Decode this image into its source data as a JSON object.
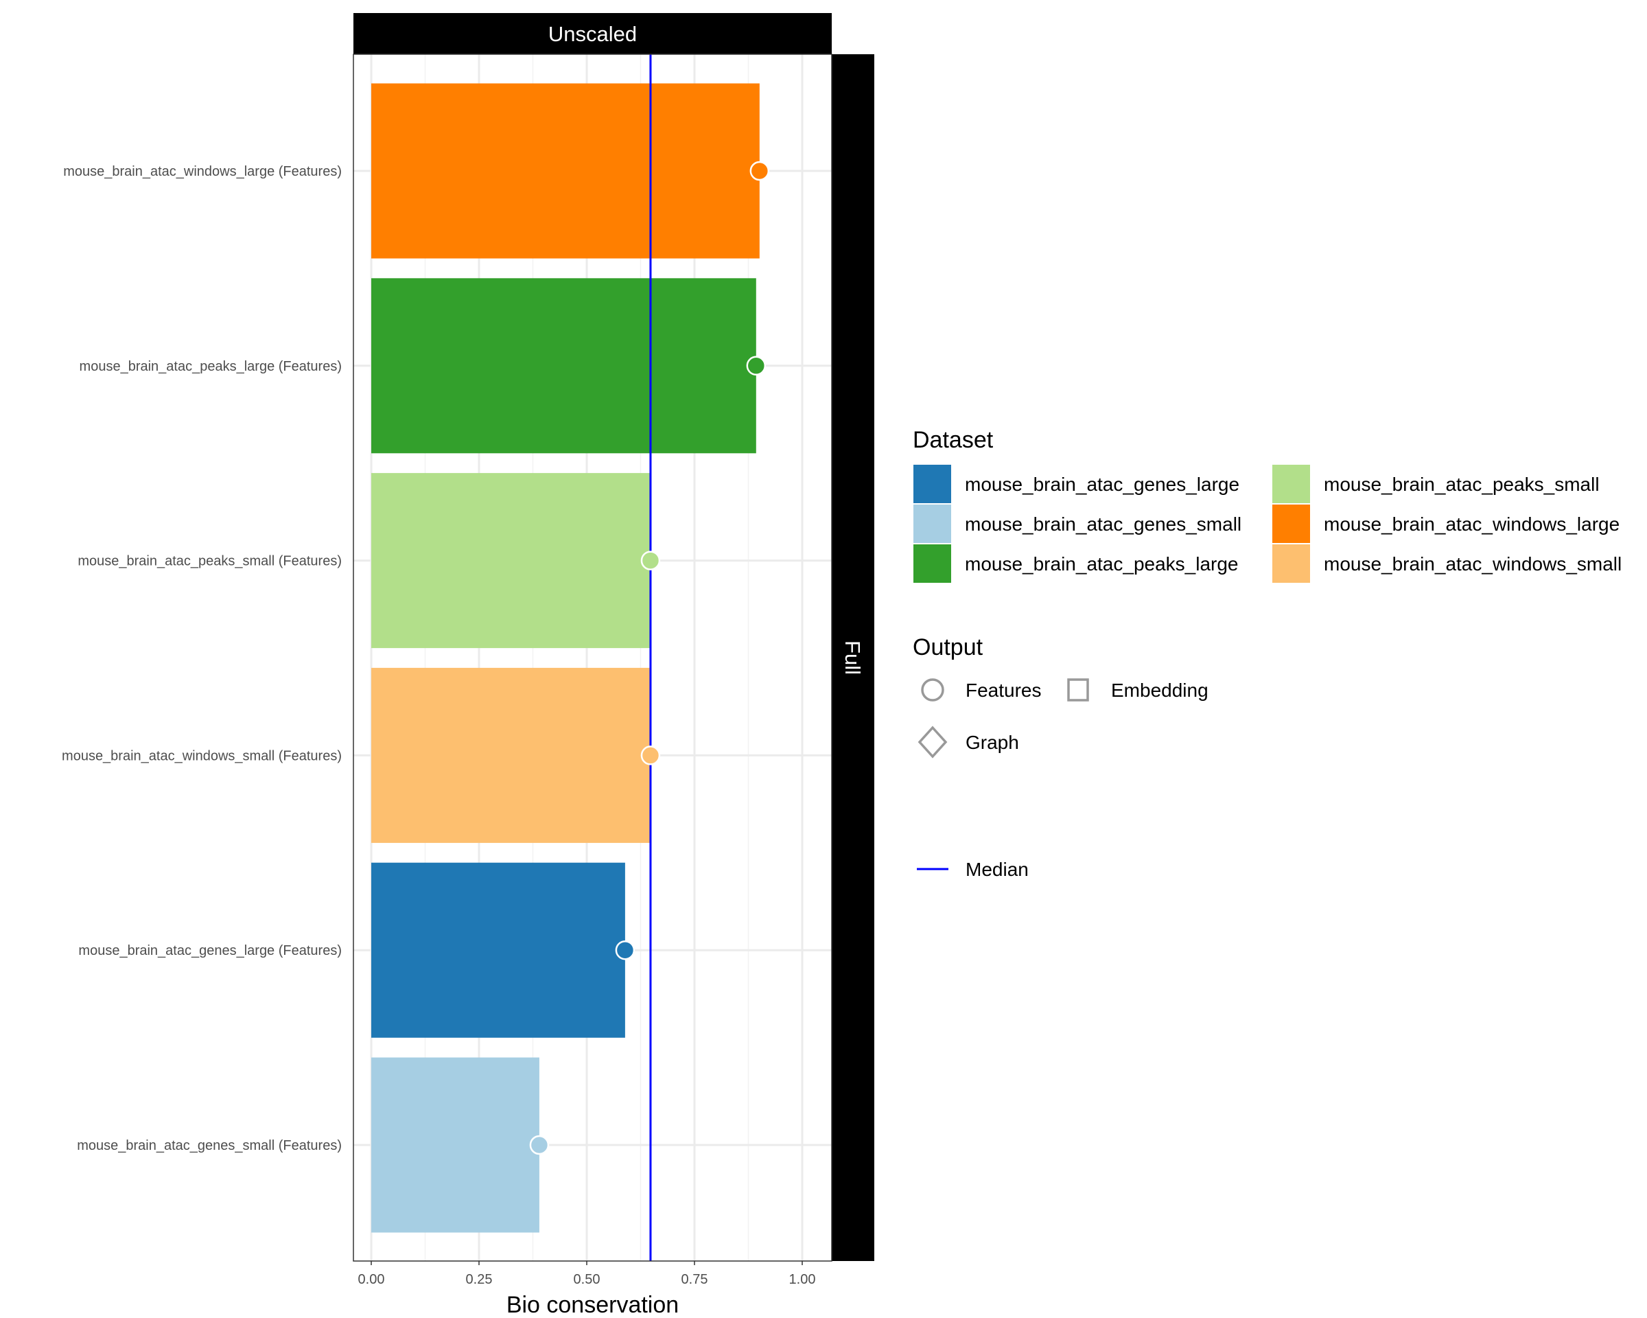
{
  "chart_data": {
    "type": "bar",
    "orientation": "horizontal",
    "title": "",
    "facet_top": "Unscaled",
    "facet_right": "Full",
    "xlabel": "Bio conservation",
    "ylabel": "",
    "xlim": [
      -0.05,
      1.05
    ],
    "xticks": [
      0,
      0.25,
      0.5,
      0.75,
      1.0
    ],
    "xtick_labels": [
      "0.00",
      "0.25",
      "0.50",
      "0.75",
      "1.00"
    ],
    "grid": true,
    "categories": [
      "mouse_brain_atac_windows_large (Features)",
      "mouse_brain_atac_peaks_large (Features)",
      "mouse_brain_atac_peaks_small (Features)",
      "mouse_brain_atac_windows_small (Features)",
      "mouse_brain_atac_genes_large (Features)",
      "mouse_brain_atac_genes_small (Features)"
    ],
    "datasets": [
      "mouse_brain_atac_windows_large",
      "mouse_brain_atac_peaks_large",
      "mouse_brain_atac_peaks_small",
      "mouse_brain_atac_windows_small",
      "mouse_brain_atac_genes_large",
      "mouse_brain_atac_genes_small"
    ],
    "values": [
      0.901,
      0.893,
      0.648,
      0.648,
      0.589,
      0.39
    ],
    "colors": [
      "#ff7f00",
      "#33a02c",
      "#b2df8a",
      "#fdbf6f",
      "#1f78b4",
      "#a6cee3"
    ],
    "point_shape": "circle",
    "median": 0.648,
    "median_color": "#0000ff",
    "legend": {
      "placement": "right",
      "dataset": {
        "title": "Dataset",
        "entries": [
          {
            "label": "mouse_brain_atac_genes_large",
            "color": "#1f78b4"
          },
          {
            "label": "mouse_brain_atac_genes_small",
            "color": "#a6cee3"
          },
          {
            "label": "mouse_brain_atac_peaks_large",
            "color": "#33a02c"
          },
          {
            "label": "mouse_brain_atac_peaks_small",
            "color": "#b2df8a"
          },
          {
            "label": "mouse_brain_atac_windows_large",
            "color": "#ff7f00"
          },
          {
            "label": "mouse_brain_atac_windows_small",
            "color": "#fdbf6f"
          }
        ]
      },
      "output": {
        "title": "Output",
        "entries": [
          {
            "label": "Features",
            "shape": "circle"
          },
          {
            "label": "Embedding",
            "shape": "square"
          },
          {
            "label": "Graph",
            "shape": "diamond"
          }
        ]
      },
      "line": {
        "label": "Median",
        "color": "#0000ff"
      }
    }
  }
}
